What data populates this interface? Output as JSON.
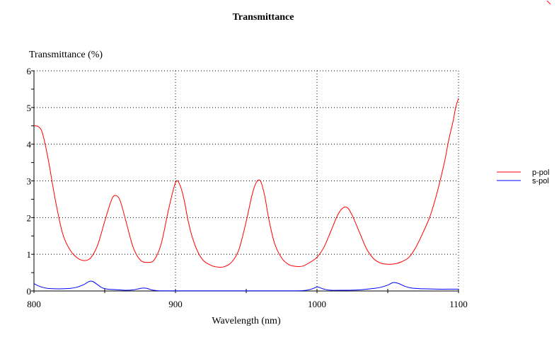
{
  "chart_data": {
    "type": "line",
    "title": "Transmittance",
    "xlabel": "Wavelength (nm)",
    "ylabel": "Transmittance (%)",
    "xlim": [
      800,
      1100
    ],
    "ylim": [
      0,
      6
    ],
    "x_ticks": [
      "800",
      "900",
      "1000",
      "1100"
    ],
    "y_ticks": [
      "0",
      "1",
      "2",
      "3",
      "4",
      "5",
      "6"
    ],
    "grid": true,
    "legend_position": "right",
    "series": [
      {
        "name": "p-pol",
        "color": "#ff0000",
        "x": [
          800,
          803,
          806,
          810,
          815,
          820,
          825,
          830,
          835,
          840,
          845,
          850,
          855,
          858,
          861,
          865,
          870,
          875,
          880,
          885,
          890,
          895,
          900,
          903,
          906,
          909,
          912,
          916,
          920,
          925,
          930,
          935,
          940,
          945,
          950,
          954,
          957,
          960,
          963,
          966,
          970,
          975,
          980,
          985,
          990,
          995,
          1000,
          1005,
          1010,
          1015,
          1019,
          1022,
          1025,
          1030,
          1035,
          1040,
          1045,
          1050,
          1055,
          1060,
          1065,
          1070,
          1075,
          1080,
          1085,
          1090,
          1093,
          1096,
          1098,
          1100
        ],
        "y": [
          4.5,
          4.48,
          4.3,
          3.6,
          2.5,
          1.6,
          1.15,
          0.92,
          0.83,
          0.9,
          1.25,
          1.9,
          2.5,
          2.6,
          2.45,
          1.9,
          1.2,
          0.85,
          0.78,
          0.85,
          1.3,
          2.2,
          2.95,
          2.9,
          2.5,
          1.9,
          1.45,
          1.05,
          0.82,
          0.7,
          0.65,
          0.67,
          0.8,
          1.15,
          1.9,
          2.6,
          2.95,
          3.0,
          2.6,
          1.95,
          1.3,
          0.9,
          0.72,
          0.67,
          0.68,
          0.78,
          0.92,
          1.2,
          1.65,
          2.1,
          2.28,
          2.25,
          2.05,
          1.6,
          1.15,
          0.88,
          0.76,
          0.73,
          0.74,
          0.8,
          0.92,
          1.2,
          1.6,
          2.05,
          2.7,
          3.5,
          4.1,
          4.6,
          5.0,
          5.25
        ]
      },
      {
        "name": "s-pol",
        "color": "#0000ff",
        "x": [
          800,
          803,
          806,
          810,
          815,
          820,
          825,
          830,
          835,
          838,
          840,
          842,
          845,
          848,
          852,
          856,
          860,
          865,
          870,
          874,
          877,
          880,
          883,
          887,
          890,
          900,
          920,
          940,
          960,
          980,
          990,
          995,
          998,
          1000,
          1002,
          1005,
          1010,
          1020,
          1030,
          1040,
          1045,
          1050,
          1053,
          1055,
          1058,
          1062,
          1067,
          1075,
          1085,
          1095,
          1100
        ],
        "y": [
          0.2,
          0.14,
          0.1,
          0.07,
          0.06,
          0.06,
          0.07,
          0.1,
          0.17,
          0.24,
          0.27,
          0.25,
          0.17,
          0.09,
          0.05,
          0.04,
          0.03,
          0.02,
          0.03,
          0.06,
          0.08,
          0.07,
          0.03,
          0.01,
          0.005,
          0.005,
          0.005,
          0.005,
          0.005,
          0.005,
          0.01,
          0.04,
          0.08,
          0.11,
          0.09,
          0.05,
          0.02,
          0.02,
          0.03,
          0.07,
          0.1,
          0.16,
          0.22,
          0.23,
          0.2,
          0.13,
          0.08,
          0.06,
          0.05,
          0.05,
          0.05
        ]
      }
    ]
  }
}
